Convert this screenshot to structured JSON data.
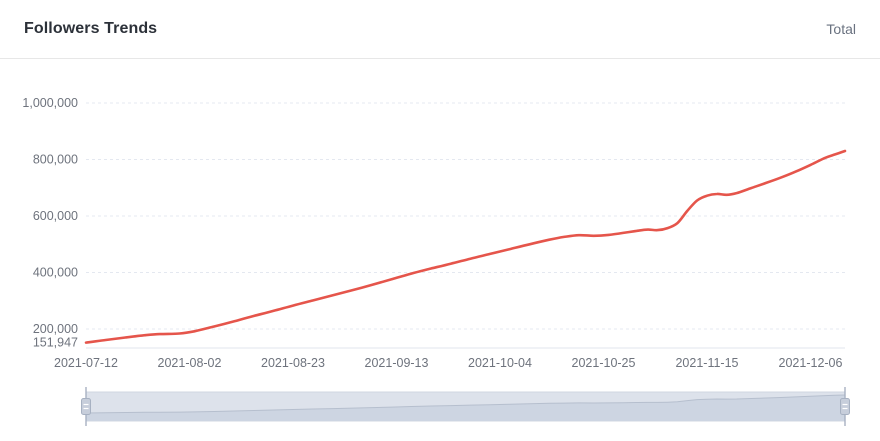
{
  "header": {
    "title": "Followers Trends",
    "legend_total_label": "Total"
  },
  "colors": {
    "line": "#e5554b",
    "axis_label": "#6e737d",
    "grid_line": "#e4e8f0",
    "axis_line": "#e0e5ee",
    "divider": "#e7e7e7",
    "brush_bg": "#dde2eb",
    "brush_border": "#d0d7e2",
    "brush_shadow": "#cdd5e2",
    "brush_line": "#b6bfce",
    "brush_handle_fill": "#c7cedb",
    "brush_handle_stroke": "#a7b1c2",
    "brush_grip": "#ffffff"
  },
  "chart_data": {
    "type": "line",
    "title": "Followers Trends",
    "legend": [
      "Total"
    ],
    "legend_position": "top-right",
    "grid": "horizontal-dotted",
    "xlabel": "",
    "ylabel": "",
    "ylim": [
      151947,
      1000000
    ],
    "y_ticks": [
      {
        "value": 1000000,
        "label": "1,000,000",
        "grid": true
      },
      {
        "value": 800000,
        "label": "800,000",
        "grid": true
      },
      {
        "value": 600000,
        "label": "600,000",
        "grid": true
      },
      {
        "value": 400000,
        "label": "400,000",
        "grid": true
      },
      {
        "value": 200000,
        "label": "200,000",
        "grid": true
      },
      {
        "value": 151947,
        "label": "151,947",
        "grid": false
      }
    ],
    "x_ticks": [
      "2021-07-12",
      "2021-08-02",
      "2021-08-23",
      "2021-09-13",
      "2021-10-04",
      "2021-10-25",
      "2021-11-15",
      "2021-12-06"
    ],
    "series": [
      {
        "name": "Total",
        "color": "#e5554b",
        "points": [
          [
            "2021-07-12",
            151947
          ],
          [
            "2021-07-16",
            161000
          ],
          [
            "2021-07-20",
            170000
          ],
          [
            "2021-07-24",
            178000
          ],
          [
            "2021-07-27",
            182000
          ],
          [
            "2021-07-31",
            184000
          ],
          [
            "2021-08-03",
            192000
          ],
          [
            "2021-08-07",
            209000
          ],
          [
            "2021-08-11",
            227000
          ],
          [
            "2021-08-15",
            246000
          ],
          [
            "2021-08-19",
            264000
          ],
          [
            "2021-08-23",
            283000
          ],
          [
            "2021-08-27",
            301000
          ],
          [
            "2021-08-31",
            319000
          ],
          [
            "2021-09-04",
            337000
          ],
          [
            "2021-09-08",
            356000
          ],
          [
            "2021-09-12",
            376000
          ],
          [
            "2021-09-16",
            396000
          ],
          [
            "2021-09-20",
            414000
          ],
          [
            "2021-09-24",
            431000
          ],
          [
            "2021-09-28",
            449000
          ],
          [
            "2021-10-02",
            466000
          ],
          [
            "2021-10-06",
            483000
          ],
          [
            "2021-10-10",
            500000
          ],
          [
            "2021-10-14",
            516000
          ],
          [
            "2021-10-17",
            526000
          ],
          [
            "2021-10-20",
            532000
          ],
          [
            "2021-10-23",
            530000
          ],
          [
            "2021-10-26",
            533000
          ],
          [
            "2021-10-29",
            540000
          ],
          [
            "2021-11-01",
            548000
          ],
          [
            "2021-11-03",
            552000
          ],
          [
            "2021-11-05",
            550000
          ],
          [
            "2021-11-07",
            557000
          ],
          [
            "2021-11-09",
            575000
          ],
          [
            "2021-11-11",
            618000
          ],
          [
            "2021-11-13",
            655000
          ],
          [
            "2021-11-15",
            672000
          ],
          [
            "2021-11-17",
            678000
          ],
          [
            "2021-11-19",
            675000
          ],
          [
            "2021-11-21",
            681000
          ],
          [
            "2021-11-24",
            699000
          ],
          [
            "2021-11-27",
            717000
          ],
          [
            "2021-11-30",
            736000
          ],
          [
            "2021-12-03",
            757000
          ],
          [
            "2021-12-06",
            781000
          ],
          [
            "2021-12-09",
            806000
          ],
          [
            "2021-12-11",
            818000
          ],
          [
            "2021-12-13",
            830000
          ]
        ]
      }
    ],
    "data_zoom": {
      "start_percent": 0,
      "end_percent": 100
    }
  }
}
